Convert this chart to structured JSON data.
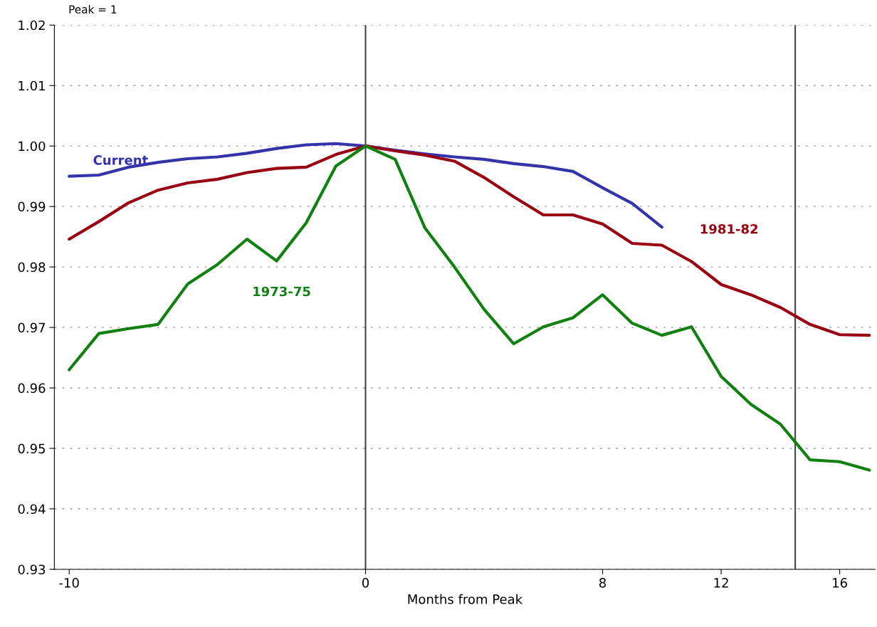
{
  "chart_data": {
    "type": "line",
    "xlabel": "Months from Peak",
    "annotations": [
      "Peak = 1"
    ],
    "x": [
      -10,
      -9,
      -8,
      -7,
      -6,
      -5,
      -4,
      -3,
      -2,
      -1,
      0,
      1,
      2,
      3,
      4,
      5,
      6,
      7,
      8,
      9,
      10,
      11,
      12,
      13,
      14,
      15,
      16,
      17
    ],
    "series": [
      {
        "name": "Current",
        "color": "#3333aa",
        "values": [
          0.995,
          0.9952,
          0.9965,
          0.9973,
          0.9979,
          0.9982,
          0.9988,
          0.9996,
          1.0002,
          1.0004,
          1.0,
          0.9993,
          0.9987,
          0.9982,
          0.9978,
          0.9971,
          0.9966,
          0.9958,
          0.9931,
          0.9905,
          0.9866,
          null,
          null,
          null,
          null,
          null,
          null,
          null
        ]
      },
      {
        "name": "1981-82",
        "color": "#990011",
        "values": [
          0.9846,
          0.9875,
          0.9906,
          0.9927,
          0.9939,
          0.9945,
          0.9956,
          0.9963,
          0.9965,
          0.9986,
          1.0,
          0.9992,
          0.9985,
          0.9975,
          0.9948,
          0.9916,
          0.9886,
          0.9886,
          0.9871,
          0.9839,
          0.9836,
          0.9809,
          0.9771,
          0.9754,
          0.9733,
          0.9705,
          0.9688,
          0.9687
        ]
      },
      {
        "name": "1973-75",
        "color": "#108010",
        "values": [
          0.963,
          0.969,
          0.9698,
          0.9705,
          0.9772,
          0.9804,
          0.9846,
          0.981,
          0.9873,
          0.9967,
          1.0,
          0.9978,
          0.9865,
          0.98,
          0.973,
          0.9673,
          0.9701,
          0.9716,
          0.9754,
          0.9707,
          0.9687,
          0.9701,
          0.9619,
          0.9573,
          0.954,
          0.9481,
          0.9478,
          0.9464
        ]
      }
    ],
    "xlim": [
      -10.5,
      17.2
    ],
    "xticks": [
      -10,
      0,
      8,
      12,
      16
    ],
    "ylim": [
      0.93,
      1.02
    ],
    "yticks": [
      0.93,
      0.94,
      0.95,
      0.96,
      0.97,
      0.98,
      0.99,
      {
        "value": 1,
        "label": "1.00"
      },
      1.01,
      1.02
    ],
    "grid": "y",
    "ref_lines": [
      {
        "axis": "x",
        "value": 0,
        "color": "#444444"
      },
      {
        "axis": "x",
        "value": 14.5,
        "color": "#444444"
      }
    ],
    "legend": false,
    "marker": "none",
    "line_style": "solid"
  }
}
